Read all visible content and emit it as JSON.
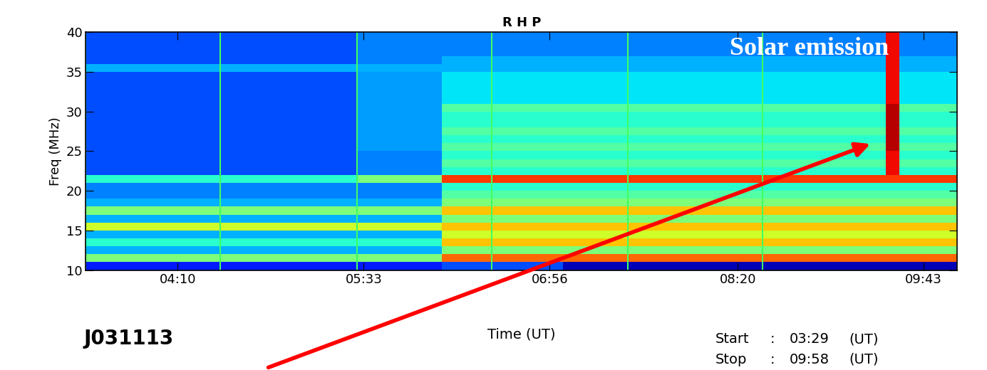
{
  "chart_data": {
    "type": "heatmap",
    "title": "R H P",
    "x_label": "Time (UT)",
    "y_label": "Freq (MHz)",
    "xlim": [
      209,
      598
    ],
    "ylim": [
      10,
      40
    ],
    "xticks": [
      {
        "value": 250,
        "label": "04:10"
      },
      {
        "value": 333,
        "label": "05:33"
      },
      {
        "value": 416,
        "label": "06:56"
      },
      {
        "value": 500,
        "label": "08:20"
      },
      {
        "value": 583,
        "label": "09:43"
      }
    ],
    "yticks": [
      10,
      15,
      20,
      25,
      30,
      35,
      40
    ],
    "grid": false,
    "x_edges": [
      209,
      240,
      270,
      300,
      330,
      350,
      368,
      395,
      422,
      450,
      480,
      510,
      540,
      566,
      572,
      598
    ],
    "y_edges": [
      10,
      11,
      12,
      13,
      14,
      15,
      16,
      17,
      18,
      19,
      20,
      21,
      22,
      23,
      24,
      25,
      26,
      27,
      28,
      29,
      30,
      31,
      32,
      33,
      34,
      35,
      36,
      37,
      38,
      39,
      40
    ],
    "color_range": [
      0,
      10
    ],
    "cells": [
      [
        1.5,
        1.5,
        1.5,
        1.5,
        1.5,
        1.5,
        2,
        2,
        0.5,
        0.5,
        0.5,
        0.5,
        0.5,
        0.5,
        0.5
      ],
      [
        5,
        5,
        5,
        5,
        5,
        5,
        8,
        8,
        8,
        8,
        8,
        8,
        8,
        8,
        8
      ],
      [
        3,
        3,
        3,
        3,
        3,
        3,
        5,
        5,
        5,
        5,
        5,
        5,
        5,
        5,
        5
      ],
      [
        4,
        4,
        4,
        4,
        4,
        4,
        7,
        7,
        7,
        7,
        7,
        7,
        7,
        7,
        7
      ],
      [
        3,
        3,
        3,
        3,
        3,
        3,
        6,
        6,
        6,
        6,
        6,
        6,
        6,
        6,
        6
      ],
      [
        6,
        6,
        6,
        6,
        6,
        6,
        7,
        7,
        7,
        7,
        7,
        7,
        7,
        7,
        7
      ],
      [
        3,
        3,
        3,
        3,
        3,
        3,
        5,
        5,
        5,
        5,
        5,
        5,
        5,
        5,
        5
      ],
      [
        5,
        5,
        5,
        5,
        5,
        5,
        7,
        7,
        7,
        7,
        7,
        7,
        7,
        7,
        7
      ],
      [
        3,
        3,
        3,
        3,
        3,
        3,
        5,
        5,
        5,
        5,
        5,
        5,
        5,
        5,
        5
      ],
      [
        2.5,
        2.5,
        2.5,
        2.5,
        2.5,
        2.5,
        4.5,
        4.5,
        4.5,
        4.5,
        4.5,
        4.5,
        4.5,
        4.5,
        4.5
      ],
      [
        2.5,
        2.5,
        2.5,
        2.5,
        2.5,
        2.5,
        4,
        4,
        4,
        4,
        4,
        4,
        4,
        4,
        4
      ],
      [
        4,
        4,
        4,
        4,
        5,
        5,
        8.5,
        8.5,
        8.5,
        8.5,
        8.5,
        8.5,
        8.5,
        8.5,
        8.5
      ],
      [
        2,
        2,
        2,
        2,
        2.5,
        2.5,
        4,
        4,
        4,
        4,
        4,
        4,
        4,
        9,
        4
      ],
      [
        2,
        2,
        2,
        2,
        2.5,
        2.5,
        4.5,
        4.5,
        4.5,
        4.5,
        4.5,
        4.5,
        4.5,
        9,
        4.5
      ],
      [
        2,
        2,
        2,
        2,
        2.5,
        2.5,
        4,
        4,
        4,
        4,
        4,
        4,
        4,
        9,
        4
      ],
      [
        2,
        2,
        2,
        2,
        2.8,
        2.8,
        4.5,
        4.5,
        4.5,
        4.5,
        4.5,
        4.5,
        4.5,
        9.5,
        4.5
      ],
      [
        2,
        2,
        2,
        2,
        2.8,
        2.8,
        4,
        4,
        4,
        4,
        4,
        4,
        4,
        9.5,
        4
      ],
      [
        2,
        2,
        2,
        2,
        2.8,
        2.8,
        4.5,
        4.5,
        4.5,
        4.5,
        4.5,
        4.5,
        4.5,
        9.5,
        4.5
      ],
      [
        2,
        2,
        2,
        2,
        2.8,
        2.8,
        4,
        4,
        4,
        4,
        4,
        4,
        4,
        9.5,
        4
      ],
      [
        2,
        2,
        2,
        2,
        2.8,
        2.8,
        4,
        4,
        4,
        4,
        4,
        4,
        4,
        9.5,
        4
      ],
      [
        2,
        2,
        2,
        2,
        2.8,
        2.8,
        4.5,
        4.5,
        4.5,
        4.5,
        4.5,
        4.5,
        4.5,
        9.5,
        4.5
      ],
      [
        2,
        2,
        2,
        2,
        2.8,
        2.8,
        3.5,
        3.5,
        3.5,
        3.5,
        3.5,
        3.5,
        3.5,
        9,
        3.5
      ],
      [
        2,
        2,
        2,
        2,
        2.8,
        2.8,
        3.5,
        3.5,
        3.5,
        3.5,
        3.5,
        3.5,
        3.5,
        9,
        3.5
      ],
      [
        2,
        2,
        2,
        2,
        2.8,
        2.8,
        3.5,
        3.5,
        3.5,
        3.5,
        3.5,
        3.5,
        3.5,
        9,
        3.5
      ],
      [
        2,
        2,
        2,
        2,
        2.8,
        2.8,
        3.5,
        3.5,
        3.5,
        3.5,
        3.5,
        3.5,
        3.5,
        9,
        3.5
      ],
      [
        3,
        3,
        3,
        3,
        3,
        3,
        3,
        3,
        3,
        3,
        3,
        3,
        3,
        9,
        3
      ],
      [
        2,
        2,
        2,
        2,
        2.5,
        2.5,
        3,
        3,
        3,
        3,
        3,
        3,
        3,
        9,
        3
      ],
      [
        2,
        2,
        2,
        2,
        2.5,
        2.5,
        2.5,
        2.5,
        2.5,
        2.5,
        2.5,
        2.5,
        2.5,
        9,
        2.5
      ],
      [
        2,
        2,
        2,
        2,
        2.5,
        2.5,
        2.5,
        2.5,
        2.5,
        2.5,
        2.5,
        2.5,
        2.5,
        9,
        2.5
      ],
      [
        2,
        2,
        2,
        2,
        2.5,
        2.5,
        2.5,
        2.5,
        2.5,
        2.5,
        2.5,
        2.5,
        2.5,
        9,
        2.5
      ]
    ],
    "vertical_lines": [
      209,
      269,
      330,
      390,
      451,
      511
    ],
    "annotation": {
      "text": "Solar emission",
      "x": 560,
      "y": 26
    },
    "info": {
      "run": "J031113",
      "start_label": "Start",
      "start": "03:29",
      "stop_label": "Stop",
      "stop": "09:58",
      "separator": ":",
      "unit": "(UT)"
    }
  }
}
